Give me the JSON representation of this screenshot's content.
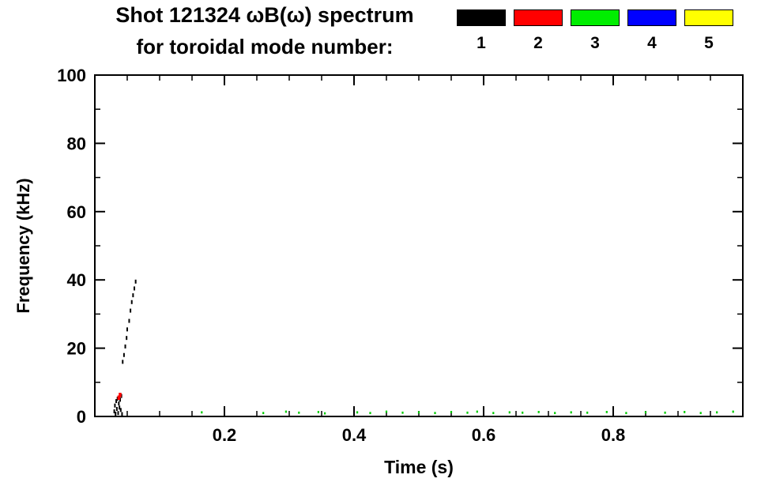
{
  "header": {
    "title": "Shot 121324 ωB(ω) spectrum",
    "subtitle": "for toroidal mode number:"
  },
  "legend": {
    "items": [
      {
        "label": "1",
        "color": "#000000"
      },
      {
        "label": "2",
        "color": "#ff0000"
      },
      {
        "label": "3",
        "color": "#00ee00"
      },
      {
        "label": "4",
        "color": "#0000ff"
      },
      {
        "label": "5",
        "color": "#ffff00"
      }
    ]
  },
  "chart_data": {
    "type": "scatter",
    "title": "Shot 121324 ωB(ω) spectrum for toroidal mode number: 1 2 3 4 5",
    "xlabel": "Time (s)",
    "ylabel": "Frequency (kHz)",
    "xlim": [
      0,
      1.0
    ],
    "ylim": [
      0,
      100
    ],
    "xticks": [
      0.2,
      0.4,
      0.6,
      0.8
    ],
    "xtick_labels": [
      "0.2",
      "0.4",
      "0.6",
      "0.8"
    ],
    "yticks": [
      0,
      20,
      40,
      60,
      80,
      100
    ],
    "ytick_labels": [
      "0",
      "20",
      "40",
      "60",
      "80",
      "100"
    ],
    "x_minor_step": 0.05,
    "y_minor_step": 10,
    "grid": false,
    "legend_position": "top-right",
    "series": [
      {
        "name": "n=1",
        "color": "#000000",
        "points": [
          [
            0.03,
            1.5
          ],
          [
            0.031,
            3.2
          ],
          [
            0.032,
            0.8
          ],
          [
            0.033,
            4.5
          ],
          [
            0.034,
            2.2
          ],
          [
            0.035,
            5.2
          ],
          [
            0.036,
            1.0
          ],
          [
            0.037,
            3.8
          ],
          [
            0.038,
            2.6
          ],
          [
            0.039,
            4.9
          ],
          [
            0.04,
            1.9
          ],
          [
            0.041,
            6.0
          ],
          [
            0.042,
            0.7
          ],
          [
            0.043,
            16.0
          ],
          [
            0.045,
            18.0
          ],
          [
            0.047,
            20.5
          ],
          [
            0.049,
            23.0
          ],
          [
            0.05,
            25.5
          ],
          [
            0.053,
            28.0
          ],
          [
            0.055,
            31.0
          ],
          [
            0.057,
            33.5
          ],
          [
            0.059,
            35.5
          ],
          [
            0.061,
            37.5
          ],
          [
            0.063,
            39.5
          ]
        ]
      },
      {
        "name": "n=2",
        "color": "#ff0000",
        "points": [
          [
            0.037,
            5.5
          ],
          [
            0.039,
            6.3
          ]
        ]
      },
      {
        "name": "n=3",
        "color": "#00cc00",
        "points": [
          [
            0.165,
            1.2
          ],
          [
            0.26,
            1.0
          ],
          [
            0.295,
            1.4
          ],
          [
            0.315,
            1.1
          ],
          [
            0.345,
            1.3
          ],
          [
            0.355,
            0.9
          ],
          [
            0.405,
            1.2
          ],
          [
            0.425,
            1.0
          ],
          [
            0.45,
            1.4
          ],
          [
            0.475,
            1.1
          ],
          [
            0.5,
            1.2
          ],
          [
            0.525,
            1.0
          ],
          [
            0.55,
            1.3
          ],
          [
            0.575,
            1.1
          ],
          [
            0.59,
            1.4
          ],
          [
            0.615,
            1.0
          ],
          [
            0.64,
            1.2
          ],
          [
            0.66,
            1.1
          ],
          [
            0.685,
            1.3
          ],
          [
            0.71,
            1.0
          ],
          [
            0.735,
            1.2
          ],
          [
            0.76,
            1.1
          ],
          [
            0.79,
            1.3
          ],
          [
            0.82,
            1.0
          ],
          [
            0.85,
            1.2
          ],
          [
            0.88,
            1.1
          ],
          [
            0.91,
            1.3
          ],
          [
            0.935,
            1.0
          ],
          [
            0.96,
            1.2
          ],
          [
            0.985,
            1.4
          ]
        ]
      },
      {
        "name": "n=4",
        "color": "#0000ff",
        "points": []
      },
      {
        "name": "n=5",
        "color": "#ffff00",
        "points": []
      }
    ]
  }
}
